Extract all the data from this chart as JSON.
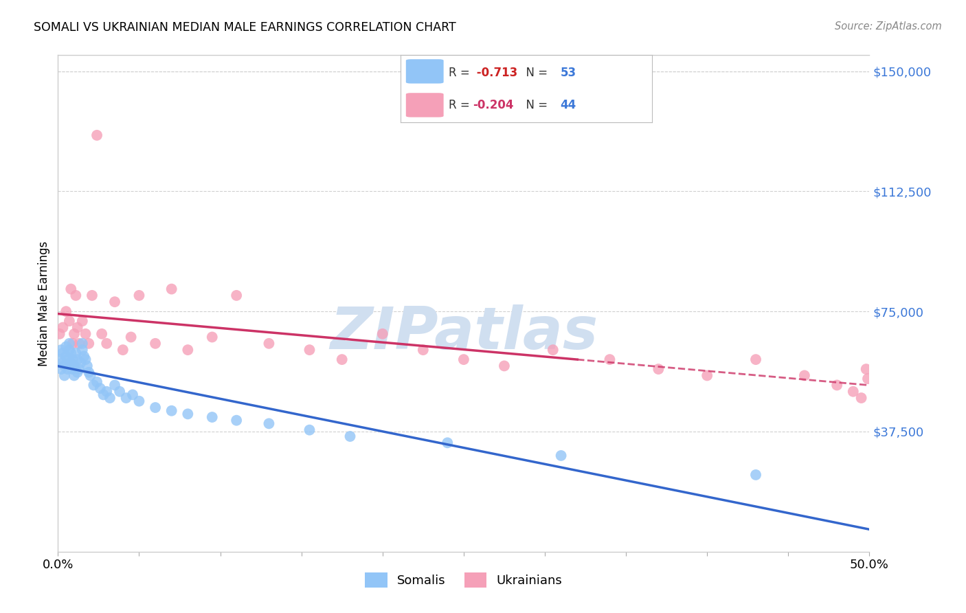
{
  "title": "SOMALI VS UKRAINIAN MEDIAN MALE EARNINGS CORRELATION CHART",
  "source": "Source: ZipAtlas.com",
  "ylabel": "Median Male Earnings",
  "ytick_labels": [
    "$37,500",
    "$75,000",
    "$112,500",
    "$150,000"
  ],
  "ytick_values": [
    37500,
    75000,
    112500,
    150000
  ],
  "ymin": 0,
  "ymax": 155000,
  "xmin": 0.0,
  "xmax": 0.5,
  "somali_color": "#92c5f7",
  "ukrainian_color": "#f5a0b8",
  "somali_line_color": "#3366cc",
  "ukrainian_line_color": "#cc3366",
  "grid_color": "#d0d0d0",
  "background_color": "#ffffff",
  "somali_x": [
    0.001,
    0.002,
    0.002,
    0.003,
    0.003,
    0.004,
    0.004,
    0.005,
    0.005,
    0.006,
    0.006,
    0.007,
    0.007,
    0.008,
    0.008,
    0.009,
    0.009,
    0.01,
    0.01,
    0.011,
    0.012,
    0.012,
    0.013,
    0.014,
    0.015,
    0.015,
    0.016,
    0.017,
    0.018,
    0.019,
    0.02,
    0.022,
    0.024,
    0.026,
    0.028,
    0.03,
    0.032,
    0.035,
    0.038,
    0.042,
    0.046,
    0.05,
    0.06,
    0.07,
    0.08,
    0.095,
    0.11,
    0.13,
    0.155,
    0.18,
    0.24,
    0.31,
    0.43
  ],
  "somali_y": [
    60000,
    57000,
    63000,
    62000,
    59000,
    58000,
    55000,
    61000,
    64000,
    60000,
    57000,
    63000,
    65000,
    62000,
    59000,
    57000,
    60000,
    55000,
    58000,
    62000,
    56000,
    60000,
    57000,
    59000,
    63000,
    65000,
    61000,
    60000,
    58000,
    56000,
    55000,
    52000,
    53000,
    51000,
    49000,
    50000,
    48000,
    52000,
    50000,
    48000,
    49000,
    47000,
    45000,
    44000,
    43000,
    42000,
    41000,
    40000,
    38000,
    36000,
    34000,
    30000,
    24000
  ],
  "ukrainian_x": [
    0.001,
    0.003,
    0.005,
    0.007,
    0.008,
    0.009,
    0.01,
    0.011,
    0.012,
    0.013,
    0.015,
    0.017,
    0.019,
    0.021,
    0.024,
    0.027,
    0.03,
    0.035,
    0.04,
    0.045,
    0.05,
    0.06,
    0.07,
    0.08,
    0.095,
    0.11,
    0.13,
    0.155,
    0.175,
    0.2,
    0.225,
    0.25,
    0.275,
    0.305,
    0.34,
    0.37,
    0.4,
    0.43,
    0.46,
    0.48,
    0.49,
    0.495,
    0.498,
    0.499
  ],
  "ukrainian_y": [
    68000,
    70000,
    75000,
    72000,
    82000,
    65000,
    68000,
    80000,
    70000,
    65000,
    72000,
    68000,
    65000,
    80000,
    130000,
    68000,
    65000,
    78000,
    63000,
    67000,
    80000,
    65000,
    82000,
    63000,
    67000,
    80000,
    65000,
    63000,
    60000,
    68000,
    63000,
    60000,
    58000,
    63000,
    60000,
    57000,
    55000,
    60000,
    55000,
    52000,
    50000,
    48000,
    57000,
    54000
  ]
}
